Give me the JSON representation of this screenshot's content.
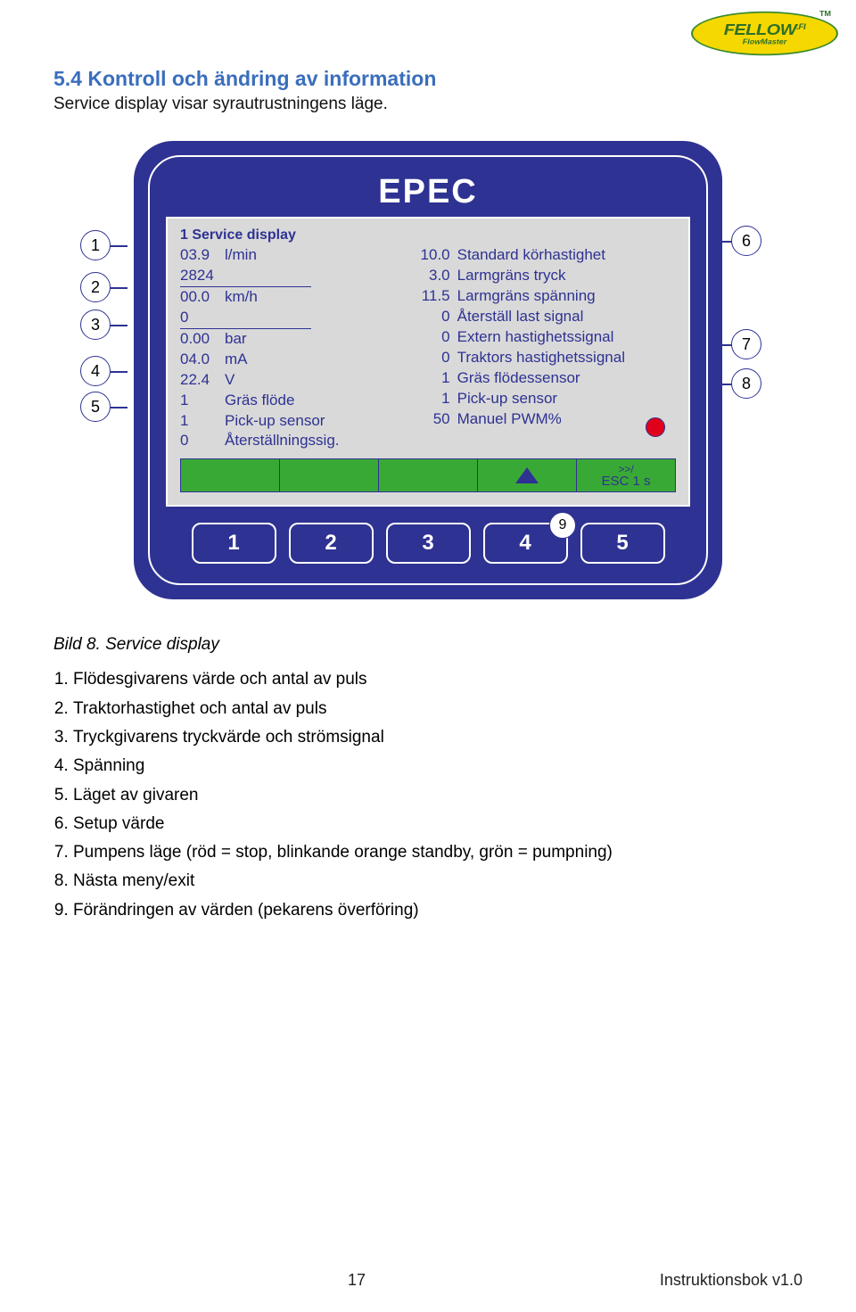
{
  "logo": {
    "text": "FELLOW",
    "sub": "FlowMaster",
    "tm": "TM",
    "suffix": ".FI"
  },
  "section": {
    "title": "5.4 Kontroll och ändring av information",
    "sub": "Service display visar syrautrustningens läge."
  },
  "device": {
    "brand": "EPEC",
    "brand_color": "#ffffff",
    "case_color": "#2e3292",
    "screen_bg": "#d9d9d9",
    "text_color": "#2e3292",
    "funcbar_color": "#39a935",
    "pump_led_color": "#e1001a",
    "title": "1   Service display",
    "left_col": [
      {
        "val": "03.9",
        "unit": "l/min",
        "lined": false
      },
      {
        "val": "2824",
        "unit": "",
        "lined": true
      },
      {
        "val": "00.0",
        "unit": "km/h",
        "lined": false
      },
      {
        "val": "0",
        "unit": "",
        "lined": true
      },
      {
        "val": "0.00",
        "unit": "bar",
        "lined": false
      },
      {
        "val": "04.0",
        "unit": "mA",
        "lined": false
      },
      {
        "val": "22.4",
        "unit": "V",
        "lined": false
      },
      {
        "val": "1",
        "unit": "Gräs flöde",
        "lined": false
      },
      {
        "val": "1",
        "unit": "Pick-up sensor",
        "lined": false
      },
      {
        "val": "0",
        "unit": "Återställningssig.",
        "lined": false
      }
    ],
    "right_col": [
      {
        "num": "10.0",
        "label": "Standard körhastighet"
      },
      {
        "num": "3.0",
        "label": "Larmgräns tryck"
      },
      {
        "num": "11.5",
        "label": "Larmgräns spänning"
      },
      {
        "num": "0",
        "label": "Återställ last signal"
      },
      {
        "num": "0",
        "label": "Extern hastighetssignal"
      },
      {
        "num": "0",
        "label": "Traktors hastighetssignal"
      },
      {
        "num": "1",
        "label": "Gräs flödessensor"
      },
      {
        "num": "1",
        "label": "Pick-up sensor"
      },
      {
        "num": "50",
        "label": "Manuel PWM%"
      }
    ],
    "esc": {
      "top": ">>/",
      "bottom": "ESC 1 s"
    },
    "buttons": [
      "1",
      "2",
      "3",
      "4",
      "5"
    ]
  },
  "callouts": {
    "left": [
      {
        "n": "1",
        "gap": 13
      },
      {
        "n": "2",
        "gap": 8
      },
      {
        "n": "3",
        "gap": 18
      },
      {
        "n": "4",
        "gap": 6
      },
      {
        "n": "5",
        "gap": 0
      }
    ],
    "right": [
      {
        "n": "6",
        "gap": 82
      },
      {
        "n": "7",
        "gap": 10
      },
      {
        "n": "8",
        "gap": 0
      }
    ],
    "nine": "9"
  },
  "caption": "Bild 8. Service display",
  "legend": [
    "Flödesgivarens värde och antal av puls",
    "Traktorhastighet och antal av puls",
    "Tryckgivarens tryckvärde och strömsignal",
    "Spänning",
    "Läget av givaren",
    "Setup värde",
    "Pumpens läge (röd = stop, blinkande orange standby, grön = pumpning)",
    "Nästa meny/exit",
    "Förändringen av värden (pekarens överföring)"
  ],
  "footer": {
    "page": "17",
    "doc": "Instruktionsbok v1.0"
  }
}
